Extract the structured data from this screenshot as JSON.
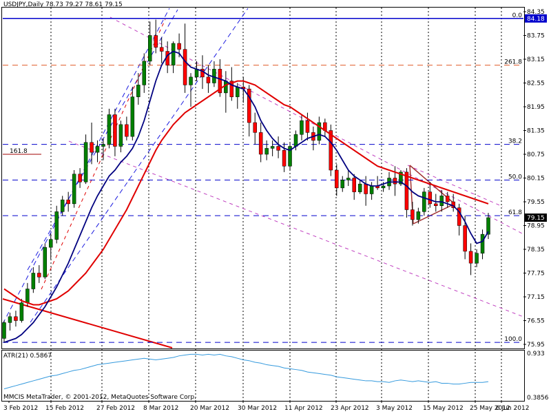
{
  "chart_header": {
    "title": "USDJPY,Daily  78.73 79.27 78.61 79.15"
  },
  "atr_header": {
    "label": "ATR(21) 0.5867",
    "top_value": "0.933",
    "bottom_value": "0.3856"
  },
  "copyright": "MMCIS MetaTrader, © 2001-2012, MetaQuotes Software Corp.",
  "chart_data": {
    "type": "candlestick",
    "symbol": "USDJPY",
    "timeframe": "Daily",
    "ohlc_header": {
      "open": 78.73,
      "high": 79.27,
      "low": 78.61,
      "close": 79.15
    },
    "current_price": "79.15",
    "ylim": [
      75.95,
      84.35
    ],
    "y_ticks": [
      "84.35",
      "83.75",
      "83.15",
      "82.55",
      "81.95",
      "81.35",
      "80.75",
      "80.15",
      "79.55",
      "78.95",
      "78.35",
      "77.75",
      "77.15",
      "76.55",
      "75.95"
    ],
    "x_labels": [
      "3 Feb 2012",
      "15 Feb 2012",
      "27 Feb 2012",
      "8 Mar 2012",
      "20 Mar 2012",
      "30 Mar 2012",
      "11 Apr 2012",
      "23 Apr 2012",
      "3 May 2012",
      "15 May 2012",
      "25 May 2012",
      "6 Jun 2012"
    ],
    "bar_up_color": "#008000",
    "bar_down_color": "#FF0000",
    "candles": [
      {
        "o": 76.1,
        "h": 76.55,
        "l": 76.0,
        "c": 76.5
      },
      {
        "o": 76.5,
        "h": 76.75,
        "l": 76.3,
        "c": 76.65
      },
      {
        "o": 76.65,
        "h": 76.8,
        "l": 76.4,
        "c": 76.55
      },
      {
        "o": 76.55,
        "h": 77.1,
        "l": 76.5,
        "c": 77.0
      },
      {
        "o": 77.0,
        "h": 77.5,
        "l": 76.9,
        "c": 77.35
      },
      {
        "o": 77.35,
        "h": 77.9,
        "l": 77.25,
        "c": 77.75
      },
      {
        "o": 77.75,
        "h": 77.95,
        "l": 77.5,
        "c": 77.65
      },
      {
        "o": 77.65,
        "h": 78.5,
        "l": 77.6,
        "c": 78.4
      },
      {
        "o": 78.4,
        "h": 78.75,
        "l": 78.1,
        "c": 78.6
      },
      {
        "o": 78.6,
        "h": 79.45,
        "l": 78.5,
        "c": 79.3
      },
      {
        "o": 79.3,
        "h": 79.7,
        "l": 79.2,
        "c": 79.6
      },
      {
        "o": 79.6,
        "h": 79.8,
        "l": 79.3,
        "c": 79.5
      },
      {
        "o": 79.5,
        "h": 80.35,
        "l": 79.4,
        "c": 80.25
      },
      {
        "o": 80.25,
        "h": 80.4,
        "l": 79.9,
        "c": 80.05
      },
      {
        "o": 80.05,
        "h": 81.25,
        "l": 80.0,
        "c": 81.05
      },
      {
        "o": 81.05,
        "h": 81.55,
        "l": 80.5,
        "c": 80.8
      },
      {
        "o": 80.8,
        "h": 81.1,
        "l": 80.55,
        "c": 80.95
      },
      {
        "o": 80.95,
        "h": 81.15,
        "l": 80.6,
        "c": 81.0
      },
      {
        "o": 81.0,
        "h": 81.9,
        "l": 80.9,
        "c": 81.75
      },
      {
        "o": 81.75,
        "h": 81.9,
        "l": 80.7,
        "c": 80.95
      },
      {
        "o": 80.95,
        "h": 81.6,
        "l": 80.8,
        "c": 81.5
      },
      {
        "o": 81.5,
        "h": 81.7,
        "l": 81.1,
        "c": 81.2
      },
      {
        "o": 81.2,
        "h": 82.45,
        "l": 81.1,
        "c": 82.2
      },
      {
        "o": 82.2,
        "h": 82.8,
        "l": 82.0,
        "c": 82.5
      },
      {
        "o": 82.5,
        "h": 83.3,
        "l": 82.3,
        "c": 83.1
      },
      {
        "o": 83.1,
        "h": 84.1,
        "l": 83.0,
        "c": 83.75
      },
      {
        "o": 83.75,
        "h": 84.15,
        "l": 83.3,
        "c": 83.45
      },
      {
        "o": 83.45,
        "h": 83.7,
        "l": 83.05,
        "c": 83.35
      },
      {
        "o": 83.35,
        "h": 83.6,
        "l": 82.8,
        "c": 83.0
      },
      {
        "o": 83.0,
        "h": 83.6,
        "l": 82.8,
        "c": 83.55
      },
      {
        "o": 83.55,
        "h": 83.8,
        "l": 83.2,
        "c": 83.4
      },
      {
        "o": 83.4,
        "h": 84.05,
        "l": 82.3,
        "c": 82.5
      },
      {
        "o": 82.5,
        "h": 82.8,
        "l": 81.95,
        "c": 82.7
      },
      {
        "o": 82.7,
        "h": 83.1,
        "l": 82.6,
        "c": 82.9
      },
      {
        "o": 82.9,
        "h": 83.25,
        "l": 82.4,
        "c": 82.7
      },
      {
        "o": 82.7,
        "h": 83.0,
        "l": 82.3,
        "c": 82.55
      },
      {
        "o": 82.55,
        "h": 83.1,
        "l": 82.45,
        "c": 82.9
      },
      {
        "o": 82.9,
        "h": 83.15,
        "l": 82.2,
        "c": 82.3
      },
      {
        "o": 82.3,
        "h": 82.85,
        "l": 81.8,
        "c": 82.6
      },
      {
        "o": 82.6,
        "h": 82.95,
        "l": 82.1,
        "c": 82.2
      },
      {
        "o": 82.2,
        "h": 82.55,
        "l": 81.9,
        "c": 82.45
      },
      {
        "o": 82.45,
        "h": 82.7,
        "l": 82.05,
        "c": 82.4
      },
      {
        "o": 82.4,
        "h": 82.5,
        "l": 81.2,
        "c": 81.55
      },
      {
        "o": 81.55,
        "h": 81.8,
        "l": 81.0,
        "c": 81.3
      },
      {
        "o": 81.3,
        "h": 81.55,
        "l": 80.55,
        "c": 80.75
      },
      {
        "o": 80.75,
        "h": 81.1,
        "l": 80.6,
        "c": 80.9
      },
      {
        "o": 80.9,
        "h": 81.1,
        "l": 80.7,
        "c": 80.95
      },
      {
        "o": 80.95,
        "h": 81.2,
        "l": 80.65,
        "c": 80.85
      },
      {
        "o": 80.85,
        "h": 81.05,
        "l": 80.3,
        "c": 80.45
      },
      {
        "o": 80.45,
        "h": 81.05,
        "l": 80.35,
        "c": 80.95
      },
      {
        "o": 80.95,
        "h": 81.35,
        "l": 80.85,
        "c": 81.25
      },
      {
        "o": 81.25,
        "h": 81.75,
        "l": 81.1,
        "c": 81.6
      },
      {
        "o": 81.6,
        "h": 81.8,
        "l": 81.1,
        "c": 81.3
      },
      {
        "o": 81.3,
        "h": 81.45,
        "l": 80.85,
        "c": 81.1
      },
      {
        "o": 81.1,
        "h": 81.7,
        "l": 81.0,
        "c": 81.55
      },
      {
        "o": 81.55,
        "h": 81.65,
        "l": 81.2,
        "c": 81.35
      },
      {
        "o": 81.35,
        "h": 81.5,
        "l": 80.2,
        "c": 80.35
      },
      {
        "o": 80.35,
        "h": 80.5,
        "l": 79.7,
        "c": 79.9
      },
      {
        "o": 79.9,
        "h": 80.2,
        "l": 79.8,
        "c": 80.1
      },
      {
        "o": 80.1,
        "h": 80.35,
        "l": 79.95,
        "c": 80.15
      },
      {
        "o": 80.15,
        "h": 80.25,
        "l": 79.6,
        "c": 79.8
      },
      {
        "o": 79.8,
        "h": 80.1,
        "l": 79.75,
        "c": 80.0
      },
      {
        "o": 80.0,
        "h": 80.2,
        "l": 79.45,
        "c": 79.75
      },
      {
        "o": 79.75,
        "h": 80.05,
        "l": 79.6,
        "c": 79.95
      },
      {
        "o": 79.95,
        "h": 80.2,
        "l": 79.85,
        "c": 79.9
      },
      {
        "o": 79.9,
        "h": 80.05,
        "l": 79.8,
        "c": 79.95
      },
      {
        "o": 79.95,
        "h": 80.3,
        "l": 79.85,
        "c": 80.15
      },
      {
        "o": 80.15,
        "h": 80.45,
        "l": 79.7,
        "c": 80.0
      },
      {
        "o": 80.0,
        "h": 80.35,
        "l": 79.95,
        "c": 80.3
      },
      {
        "o": 80.3,
        "h": 80.4,
        "l": 79.15,
        "c": 79.35
      },
      {
        "o": 79.35,
        "h": 79.55,
        "l": 78.95,
        "c": 79.1
      },
      {
        "o": 79.1,
        "h": 79.4,
        "l": 79.0,
        "c": 79.3
      },
      {
        "o": 79.3,
        "h": 79.9,
        "l": 79.2,
        "c": 79.8
      },
      {
        "o": 79.8,
        "h": 80.05,
        "l": 79.4,
        "c": 79.5
      },
      {
        "o": 79.5,
        "h": 79.75,
        "l": 79.3,
        "c": 79.45
      },
      {
        "o": 79.45,
        "h": 79.85,
        "l": 79.3,
        "c": 79.7
      },
      {
        "o": 79.7,
        "h": 79.8,
        "l": 79.4,
        "c": 79.55
      },
      {
        "o": 79.55,
        "h": 79.75,
        "l": 79.3,
        "c": 79.4
      },
      {
        "o": 79.4,
        "h": 79.5,
        "l": 78.7,
        "c": 78.95
      },
      {
        "o": 78.95,
        "h": 79.2,
        "l": 78.1,
        "c": 78.3
      },
      {
        "o": 78.3,
        "h": 78.5,
        "l": 77.7,
        "c": 78.0
      },
      {
        "o": 78.0,
        "h": 78.35,
        "l": 77.9,
        "c": 78.25
      },
      {
        "o": 78.25,
        "h": 78.85,
        "l": 78.1,
        "c": 78.73
      },
      {
        "o": 78.73,
        "h": 79.27,
        "l": 78.61,
        "c": 79.15
      }
    ],
    "moving_average_fast": [
      76.0,
      76.05,
      76.1,
      76.2,
      76.35,
      76.5,
      76.7,
      76.9,
      77.15,
      77.4,
      77.7,
      78.0,
      78.35,
      78.7,
      79.05,
      79.4,
      79.7,
      79.95,
      80.2,
      80.35,
      80.55,
      80.7,
      80.9,
      81.2,
      81.6,
      82.1,
      82.6,
      83.0,
      83.25,
      83.35,
      83.3,
      83.1,
      82.95,
      82.9,
      82.85,
      82.75,
      82.7,
      82.65,
      82.6,
      82.5,
      82.45,
      82.4,
      82.2,
      81.95,
      81.6,
      81.35,
      81.15,
      81.0,
      80.9,
      80.85,
      80.95,
      81.05,
      81.15,
      81.2,
      81.25,
      81.2,
      81.05,
      80.85,
      80.6,
      80.35,
      80.2,
      80.1,
      80.0,
      79.95,
      79.95,
      80.0,
      80.05,
      80.05,
      80.05,
      79.95,
      79.8,
      79.7,
      79.65,
      79.6,
      79.55,
      79.55,
      79.5,
      79.45,
      79.3,
      79.05,
      78.75,
      78.5,
      78.55,
      78.8
    ],
    "moving_average_slow": [
      77.35,
      77.25,
      77.15,
      77.05,
      77.0,
      76.95,
      76.95,
      77.0,
      77.05,
      77.1,
      77.2,
      77.3,
      77.45,
      77.6,
      77.75,
      77.95,
      78.15,
      78.35,
      78.6,
      78.85,
      79.1,
      79.35,
      79.65,
      79.95,
      80.25,
      80.55,
      80.85,
      81.1,
      81.3,
      81.5,
      81.65,
      81.8,
      81.9,
      82.0,
      82.1,
      82.2,
      82.3,
      82.4,
      82.5,
      82.55,
      82.6,
      82.6,
      82.55,
      82.5,
      82.4,
      82.3,
      82.2,
      82.1,
      82.0,
      81.95,
      81.85,
      81.75,
      81.65,
      81.55,
      81.45,
      81.35,
      81.25,
      81.15,
      81.05,
      80.95,
      80.85,
      80.75,
      80.65,
      80.55,
      80.45,
      80.4,
      80.35,
      80.3,
      80.25,
      80.2,
      80.15,
      80.1,
      80.05,
      80.0,
      79.95,
      79.9,
      79.85,
      79.8,
      79.75,
      79.7,
      79.65,
      79.6,
      79.55,
      79.5
    ],
    "fibonacci": [
      {
        "label": "0.0",
        "price": 84.18
      },
      {
        "label": "261.8",
        "price": 83.0
      },
      {
        "label": "38.2",
        "price": 81.0
      },
      {
        "label": "50.0",
        "price": 80.1
      },
      {
        "label": "61.8",
        "price": 79.2
      },
      {
        "label": "100.0",
        "price": 76.0
      },
      {
        "label": "161.8",
        "price": 80.75
      }
    ],
    "price_labels": [
      "84.18",
      "79.15"
    ],
    "atr": {
      "name": "ATR(21)",
      "value": 0.5867,
      "range": [
        0.3856,
        0.933
      ],
      "values": [
        0.5,
        0.52,
        0.54,
        0.56,
        0.58,
        0.6,
        0.62,
        0.64,
        0.66,
        0.67,
        0.69,
        0.71,
        0.73,
        0.74,
        0.76,
        0.78,
        0.8,
        0.81,
        0.82,
        0.83,
        0.84,
        0.85,
        0.86,
        0.87,
        0.88,
        0.87,
        0.86,
        0.87,
        0.88,
        0.89,
        0.91,
        0.92,
        0.93,
        0.93,
        0.92,
        0.93,
        0.92,
        0.93,
        0.91,
        0.9,
        0.88,
        0.86,
        0.85,
        0.83,
        0.82,
        0.8,
        0.79,
        0.78,
        0.76,
        0.75,
        0.74,
        0.73,
        0.71,
        0.7,
        0.69,
        0.68,
        0.67,
        0.65,
        0.64,
        0.63,
        0.62,
        0.61,
        0.6,
        0.6,
        0.59,
        0.59,
        0.58,
        0.6,
        0.61,
        0.6,
        0.59,
        0.6,
        0.59,
        0.58,
        0.59,
        0.57,
        0.57,
        0.56,
        0.56,
        0.57,
        0.58,
        0.58,
        0.58,
        0.59
      ]
    }
  }
}
